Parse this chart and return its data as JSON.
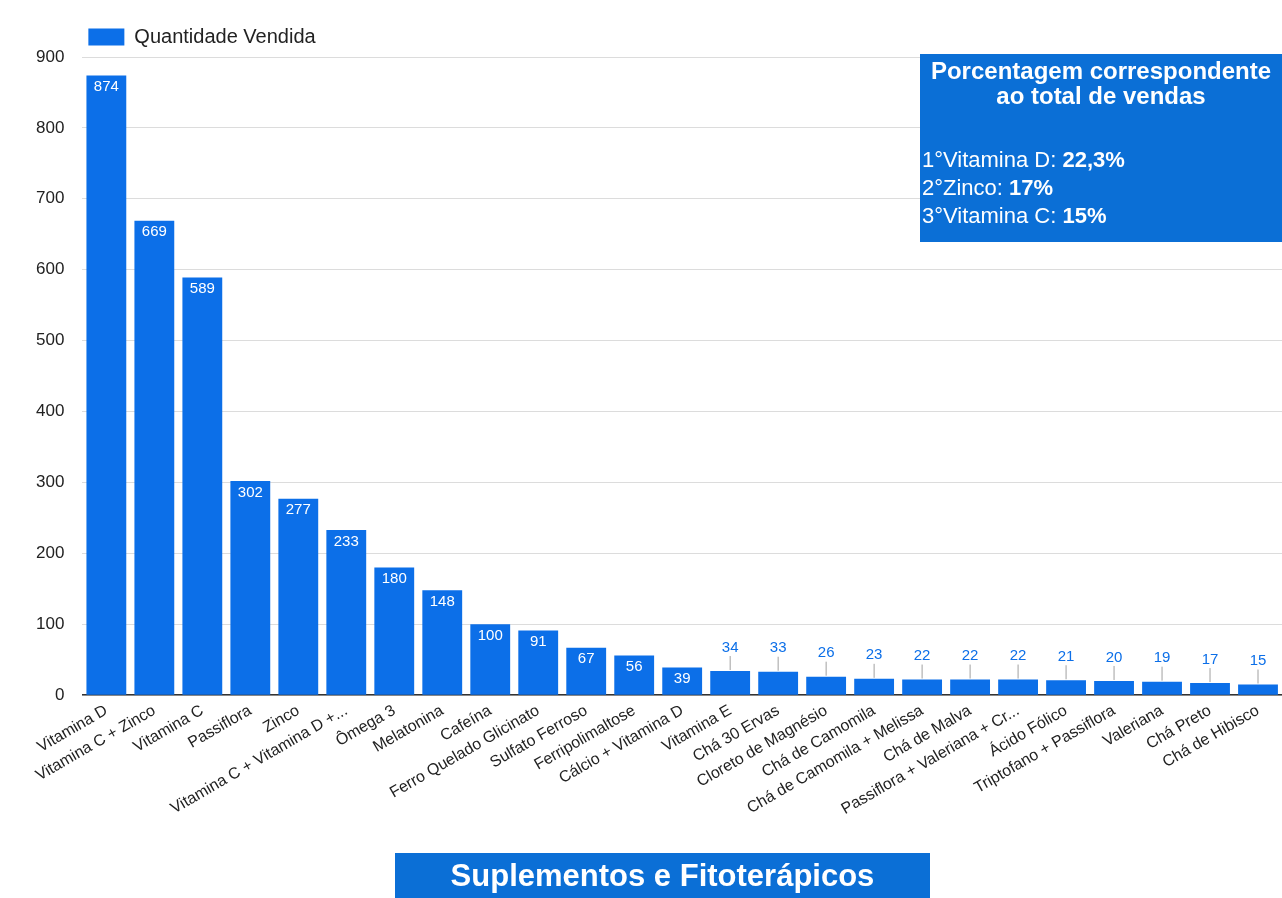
{
  "chart_data": {
    "type": "bar",
    "categories": [
      "Vitamina D",
      "Vitamina C + Zinco",
      "Vitamina C",
      "Passiflora",
      "Zinco",
      "Vitamina C + Vitamina D +...",
      "Ômega 3",
      "Melatonina",
      "Cafeína",
      "Ferro Quelado Glicinato",
      "Sulfato Ferroso",
      "Ferripolimaltose",
      "Cálcio + Vitamina D",
      "Vitamina E",
      "Chá 30 Ervas",
      "Cloreto de Magnésio",
      "Chá de Camomila",
      "Chá de Camomila + Melissa",
      "Chá de Malva",
      "Passiflora + Valeriana + Cr...",
      "Ácido Fólico",
      "Triptofano + Passiflora",
      "Valeriana",
      "Chá Preto",
      "Chá de Hibisco"
    ],
    "series": [
      {
        "name": "Quantidade Vendida",
        "color": "#0c6fe8",
        "values": [
          874,
          669,
          589,
          302,
          277,
          233,
          180,
          148,
          100,
          91,
          67,
          56,
          39,
          34,
          33,
          26,
          23,
          22,
          22,
          22,
          21,
          20,
          19,
          17,
          15
        ]
      }
    ],
    "xlabel": "Suplementos e Fitoterápicos",
    "ylim": [
      0,
      900
    ],
    "yticks": [
      0,
      100,
      200,
      300,
      400,
      500,
      600,
      700,
      800,
      900
    ],
    "grid": "y",
    "legend": "top left",
    "data_labels": true,
    "annotations": [
      "Porcentagem correspondente ao total de vendas",
      "1°Vitamina D: 22,3%",
      "2°Zinco: 17%",
      "3°Vitamina C: 15%"
    ]
  }
}
